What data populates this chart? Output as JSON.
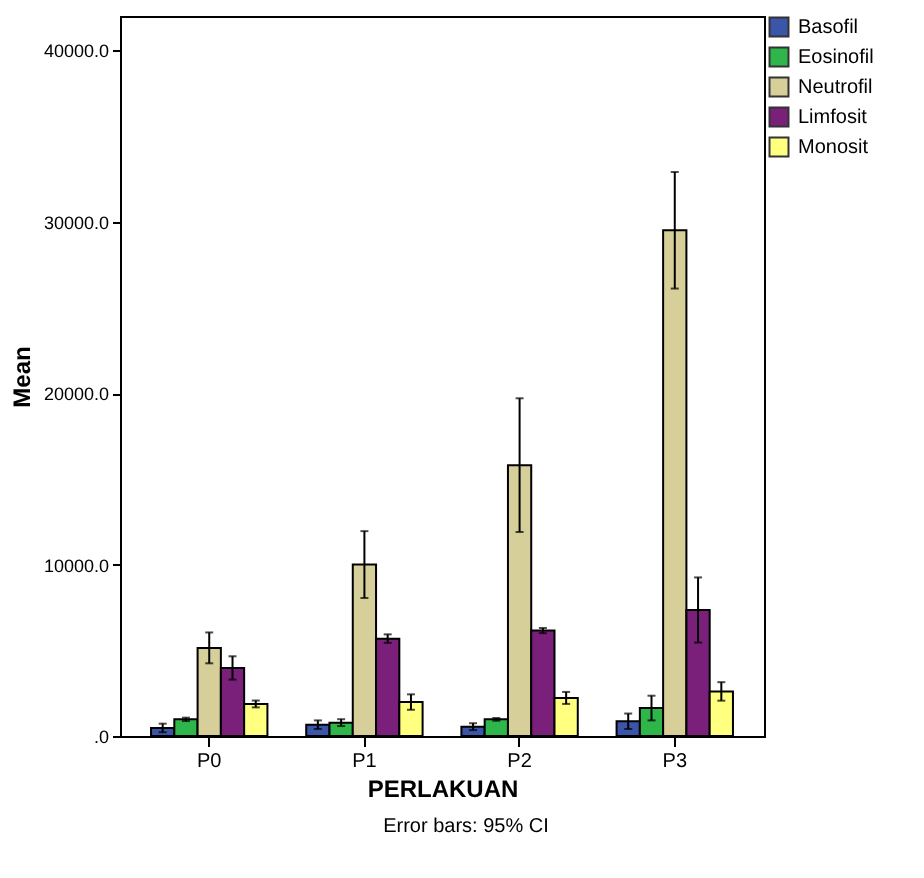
{
  "chart_data": {
    "type": "bar",
    "xlabel": "PERLAKUAN",
    "ylabel": "Mean",
    "annotations": [
      "Error bars: 95% CI"
    ],
    "categories": [
      "P0",
      "P1",
      "P2",
      "P3"
    ],
    "series": [
      {
        "name": "Basofil",
        "color": "#3b55a8",
        "values": [
          470,
          660,
          545,
          860
        ],
        "errors": [
          250,
          250,
          200,
          450
        ]
      },
      {
        "name": "Eosinofil",
        "color": "#2fb64a",
        "values": [
          970,
          780,
          970,
          1630
        ],
        "errors": [
          100,
          200,
          80,
          720
        ]
      },
      {
        "name": "Neutrofil",
        "color": "#d6cf9a",
        "values": [
          5140,
          10000,
          15800,
          29500
        ],
        "errors": [
          900,
          1950,
          3900,
          3400
        ]
      },
      {
        "name": "Limfosit",
        "color": "#7a1f7a",
        "values": [
          3970,
          5680,
          6150,
          7350
        ],
        "errors": [
          680,
          250,
          150,
          1900
        ]
      },
      {
        "name": "Monosit",
        "color": "#ffff80",
        "values": [
          1870,
          1980,
          2220,
          2600
        ],
        "errors": [
          200,
          450,
          350,
          540
        ]
      }
    ],
    "ylim": [
      0,
      42000
    ],
    "yticks": [
      {
        "value": 0,
        "label": ".0"
      },
      {
        "value": 10000,
        "label": "10000.0"
      },
      {
        "value": 20000,
        "label": "20000.0"
      },
      {
        "value": 30000,
        "label": "30000.0"
      },
      {
        "value": 40000,
        "label": "40000.0"
      }
    ],
    "grid": false,
    "legend": "top right"
  }
}
